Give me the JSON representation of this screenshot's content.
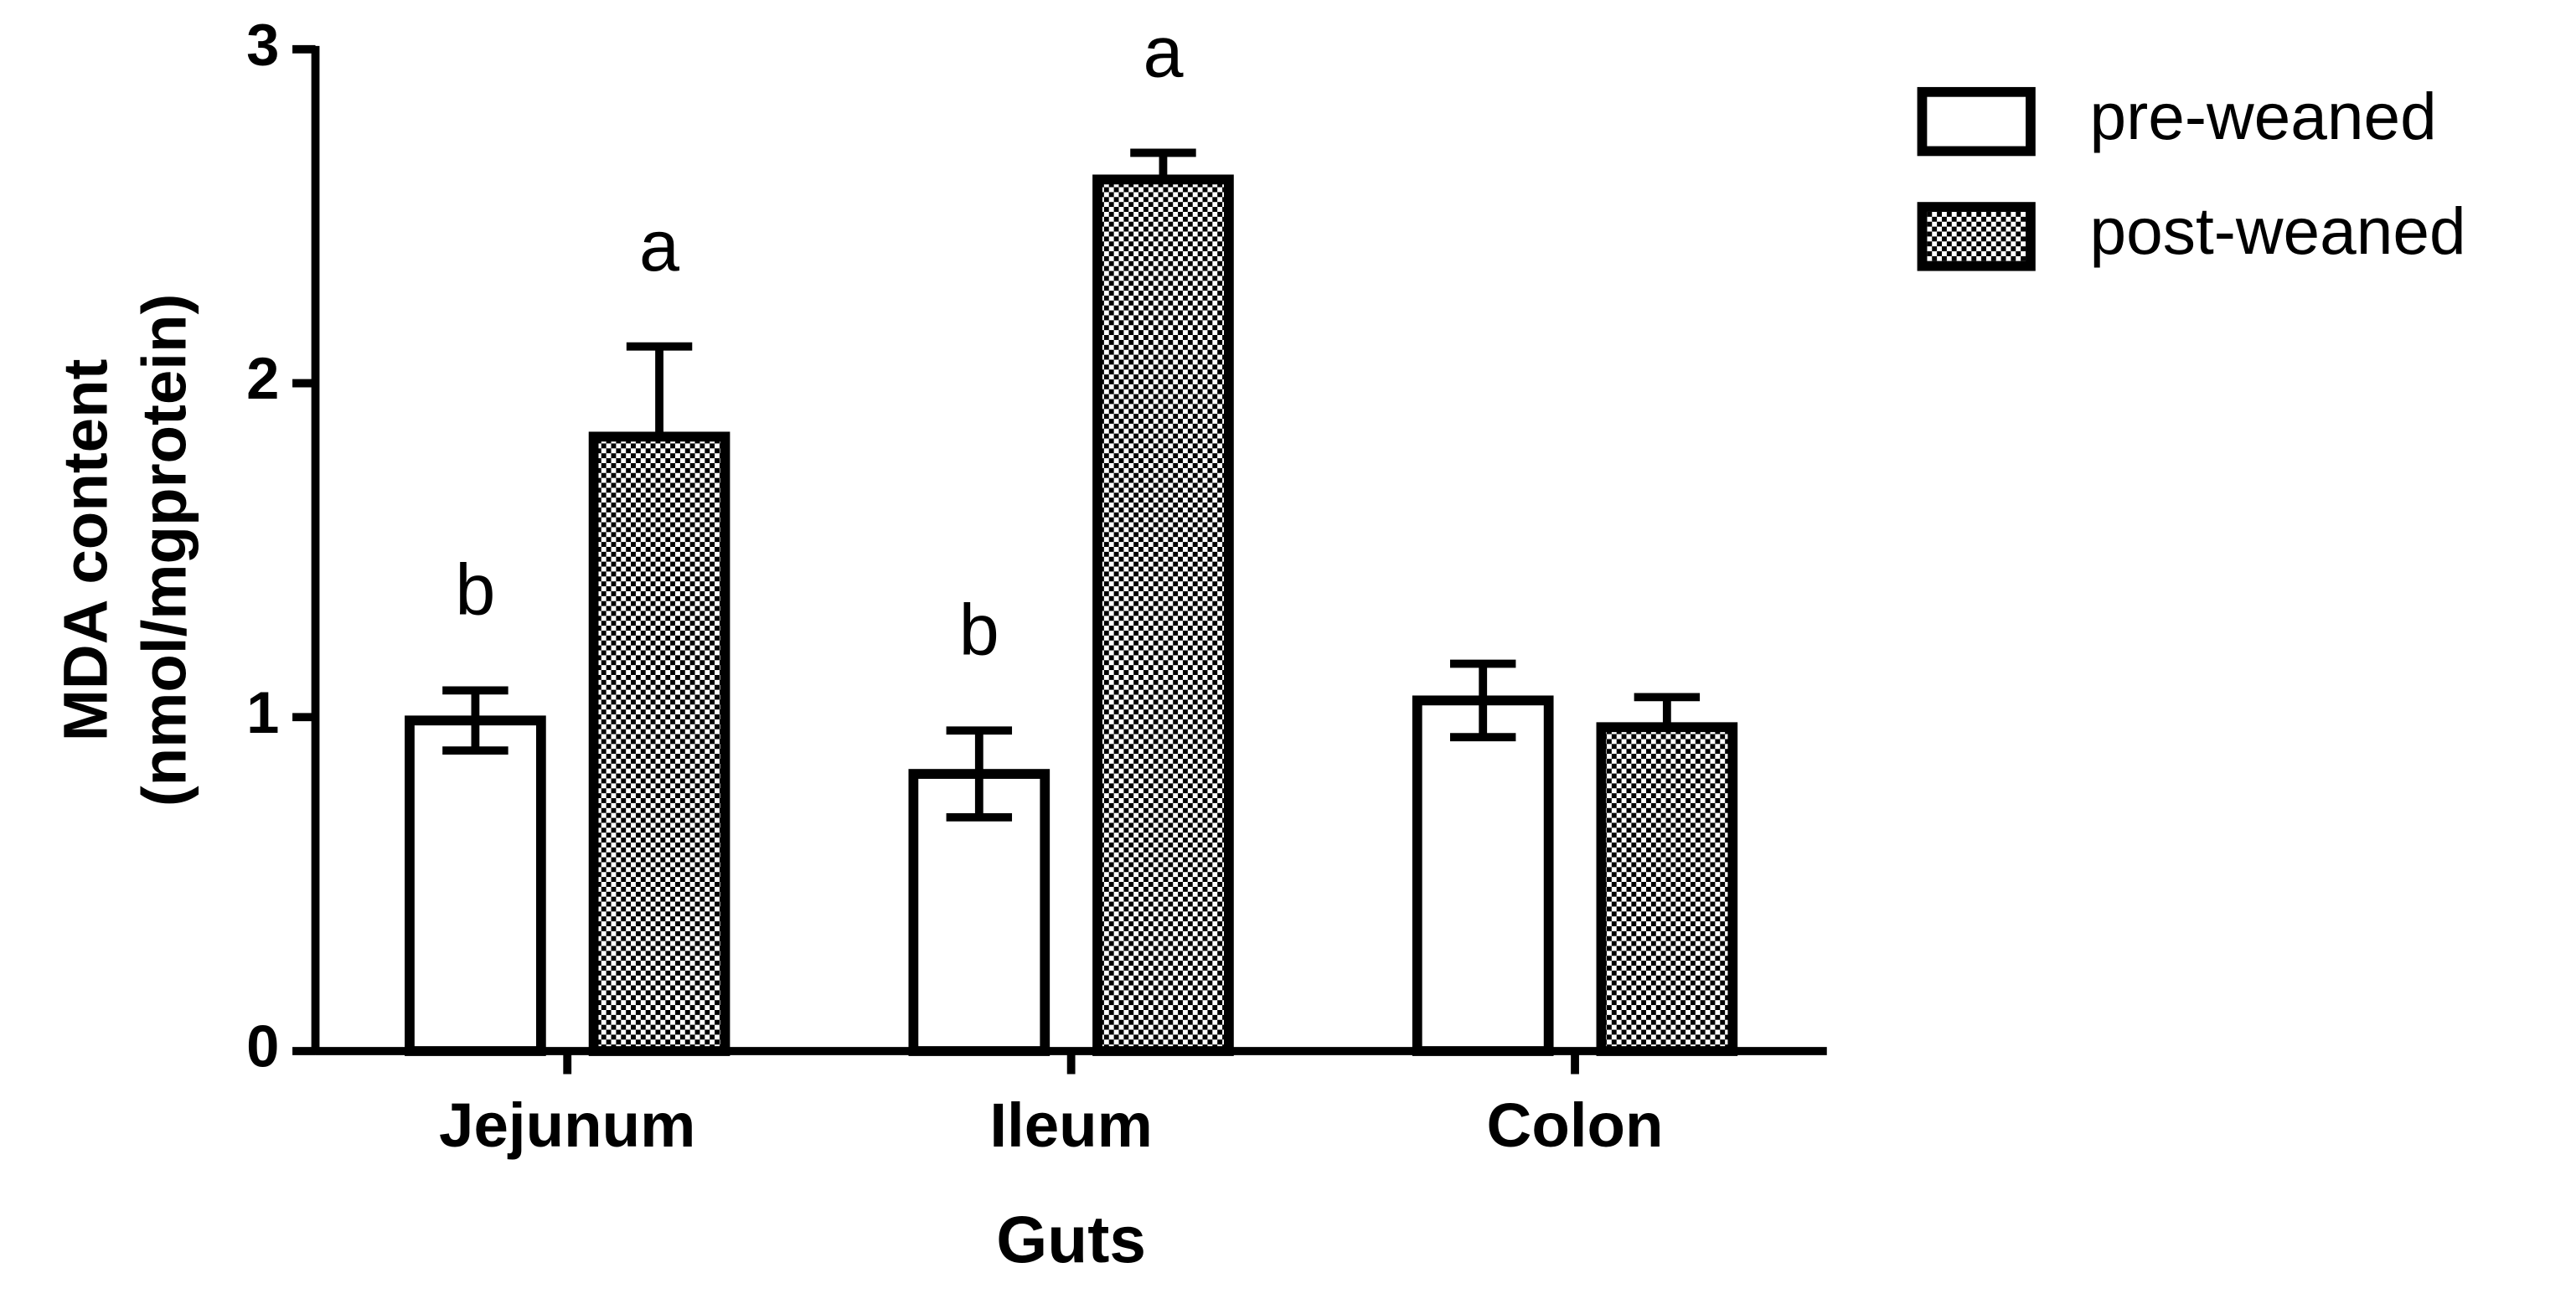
{
  "chart_data": {
    "type": "bar",
    "x_label": "Guts",
    "y_label": [
      "MDA content",
      "(nmol/mgprotein)"
    ],
    "categories": [
      "Jejunum",
      "Ileum",
      "Colon"
    ],
    "series": [
      {
        "name": "pre-weaned",
        "color": "#ffffff",
        "pattern": "none",
        "values": [
          0.99,
          0.83,
          1.05
        ],
        "errors": [
          0.09,
          0.13,
          0.11
        ],
        "letters": [
          "b",
          "b",
          null
        ]
      },
      {
        "name": "post-weaned",
        "color": "#000000",
        "pattern": "checkerboard",
        "values": [
          1.84,
          2.61,
          0.97
        ],
        "errors": [
          0.27,
          0.08,
          0.09
        ],
        "letters": [
          "a",
          "a",
          null
        ]
      }
    ],
    "ylim": [
      0,
      3
    ],
    "yticks": [
      0,
      1,
      2,
      3
    ],
    "legend": "top-right"
  }
}
